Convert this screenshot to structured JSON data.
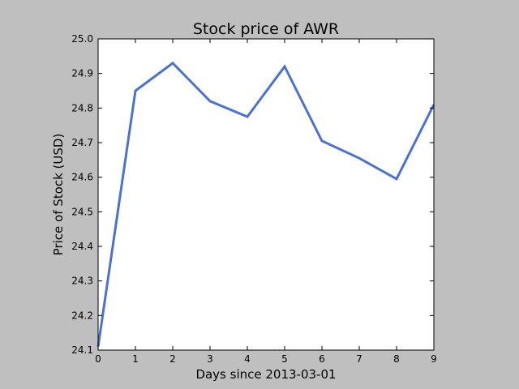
{
  "chart_data": {
    "type": "line",
    "title": "Stock price of AWR",
    "xlabel": "Days since 2013-03-01",
    "ylabel": "Price of Stock (USD)",
    "xlim": [
      0,
      9
    ],
    "ylim": [
      24.1,
      25.0
    ],
    "x_ticks": [
      "0",
      "1",
      "2",
      "3",
      "4",
      "5",
      "6",
      "7",
      "8",
      "9"
    ],
    "y_ticks": [
      "24.1",
      "24.2",
      "24.3",
      "24.4",
      "24.5",
      "24.6",
      "24.7",
      "24.8",
      "24.9",
      "25.0"
    ],
    "grid": false,
    "legend": "none",
    "series": [
      {
        "color": "#4c72cc",
        "x": [
          0,
          1,
          2,
          3,
          4,
          5,
          6,
          7,
          8,
          9
        ],
        "y": [
          24.11,
          24.85,
          24.93,
          24.82,
          24.775,
          24.92,
          24.705,
          24.655,
          24.595,
          24.81
        ]
      }
    ],
    "colors": {
      "figure_background": "#bfbfbf",
      "plot_background": "#ffffff"
    }
  }
}
